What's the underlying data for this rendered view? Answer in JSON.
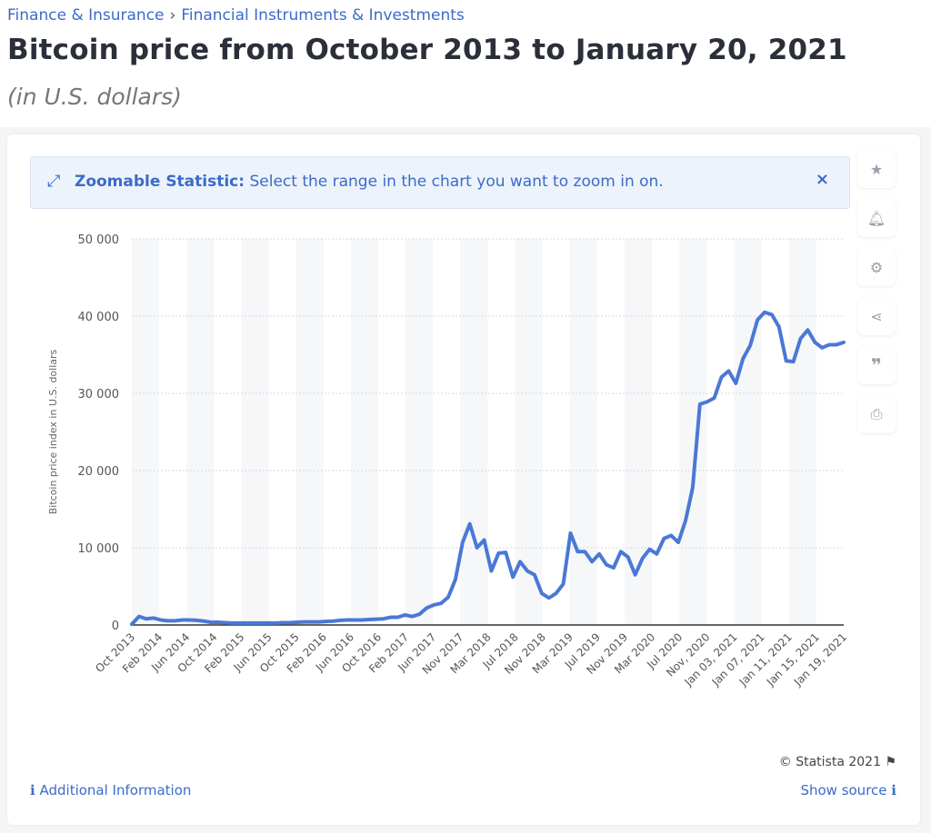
{
  "breadcrumb": [
    "Finance & Insurance",
    "Financial Instruments & Investments"
  ],
  "title": "Bitcoin price from October 2013 to January 20, 2021",
  "subtitle": "(in U.S. dollars)",
  "banner": {
    "icon": "expand-arrows-icon",
    "bold": "Zoomable Statistic:",
    "text": "Select the range in the chart you want to zoom in on.",
    "close": "×"
  },
  "tools": [
    "star-icon",
    "bell-icon",
    "gear-icon",
    "share-icon",
    "quote-icon",
    "print-icon"
  ],
  "footer": {
    "copyright": "© Statista 2021",
    "additional_info": "Additional Information",
    "show_source": "Show source"
  },
  "colors": {
    "line": "#4a78d6",
    "link": "#3b6bc9"
  },
  "chart_data": {
    "type": "line",
    "title": "Bitcoin price from October 2013 to January 20, 2021",
    "ylabel": "Bitcoin price index in U.S. dollars",
    "xlabel": "",
    "ylim": [
      0,
      50000
    ],
    "y_ticks": [
      0,
      10000,
      20000,
      30000,
      40000,
      50000
    ],
    "y_tick_labels": [
      "0",
      "10 000",
      "20 000",
      "30 000",
      "40 000",
      "50 000"
    ],
    "grid": true,
    "x_tick_labels": [
      "Oct 2013",
      "Feb 2014",
      "Jun 2014",
      "Oct 2014",
      "Feb 2015",
      "Jun 2015",
      "Oct 2015",
      "Feb 2016",
      "Jun 2016",
      "Oct 2016",
      "Feb 2017",
      "Jun 2017",
      "Nov 2017",
      "Mar 2018",
      "Jul 2018",
      "Nov 2018",
      "Mar 2019",
      "Jul 2019",
      "Nov 2019",
      "Mar 2020",
      "Jul 2020",
      "Nov, 2020",
      "Jan 03, 2021",
      "Jan 07, 2021",
      "Jan 11, 2021",
      "Jan 15, 2021",
      "Jan 19, 2021"
    ],
    "values": [
      100,
      1100,
      800,
      900,
      650,
      550,
      550,
      650,
      650,
      600,
      500,
      350,
      350,
      300,
      250,
      250,
      250,
      250,
      250,
      250,
      250,
      300,
      300,
      350,
      400,
      400,
      400,
      450,
      500,
      600,
      650,
      650,
      650,
      700,
      750,
      800,
      1000,
      1000,
      1300,
      1100,
      1400,
      2200,
      2600,
      2800,
      3600,
      5900,
      10700,
      13100,
      10000,
      11000,
      7000,
      9300,
      9400,
      6200,
      8200,
      7000,
      6500,
      4100,
      3500,
      4100,
      5300,
      11900,
      9500,
      9500,
      8200,
      9200,
      7800,
      7400,
      9500,
      8800,
      6500,
      8600,
      9800,
      9200,
      11200,
      11600,
      10700,
      13500,
      17800,
      28600,
      28900,
      29400,
      32100,
      32900,
      31300,
      34500,
      36200,
      39500,
      40500,
      40200,
      38600,
      34200,
      34100,
      37100,
      38200,
      36600,
      35900,
      36300,
      36300,
      36600
    ]
  }
}
